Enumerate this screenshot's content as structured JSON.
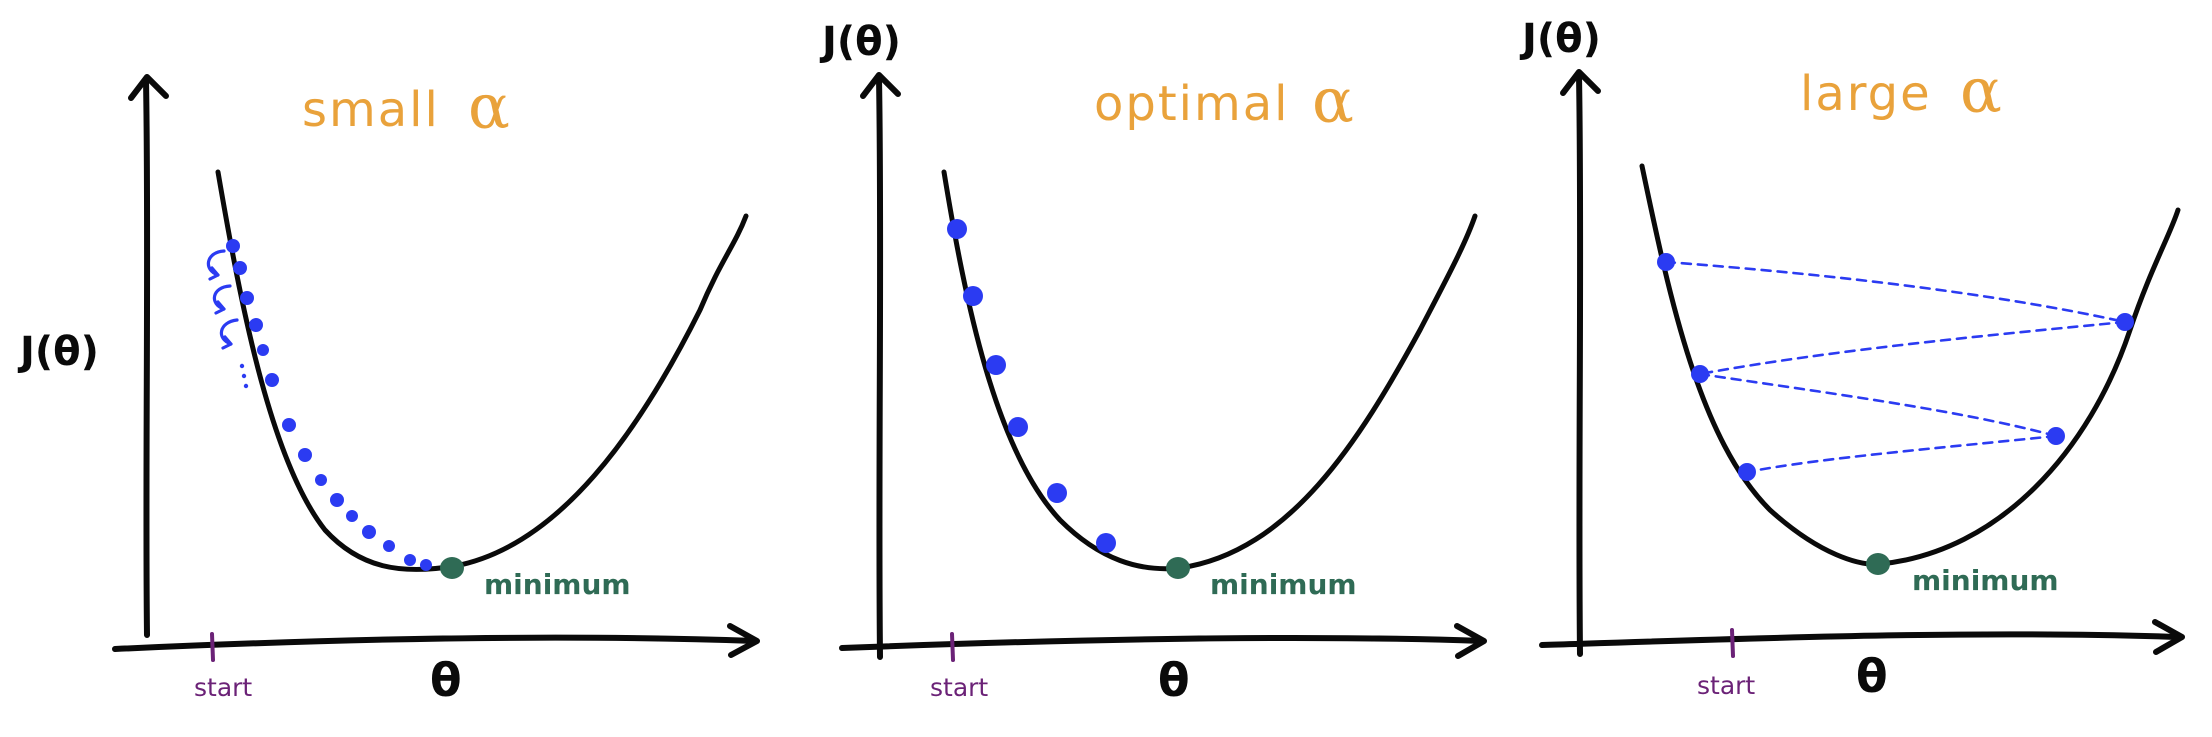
{
  "panels": [
    {
      "title": "small",
      "alpha_symbol": "α",
      "y_axis_label": "J(θ)",
      "x_axis_label": "θ",
      "start_label": "start",
      "minimum_label": "minimum",
      "point_color": "#2b3bf2",
      "minimum_color": "#2f6b55"
    },
    {
      "title": "optimal",
      "alpha_symbol": "α",
      "y_axis_label": "J(θ)",
      "x_axis_label": "θ",
      "start_label": "start",
      "minimum_label": "minimum",
      "point_color": "#2b3bf2",
      "minimum_color": "#2f6b55"
    },
    {
      "title": "large",
      "alpha_symbol": "α",
      "y_axis_label": "J(θ)",
      "x_axis_label": "θ",
      "start_label": "start",
      "minimum_label": "minimum",
      "point_color": "#2b3bf2",
      "minimum_color": "#2f6b55"
    }
  ],
  "colors": {
    "title": "#e9a23b",
    "start": "#6b2277",
    "steps": "#2b3bf2",
    "minimum": "#2f6b55",
    "axes": "#0a0a0a"
  }
}
